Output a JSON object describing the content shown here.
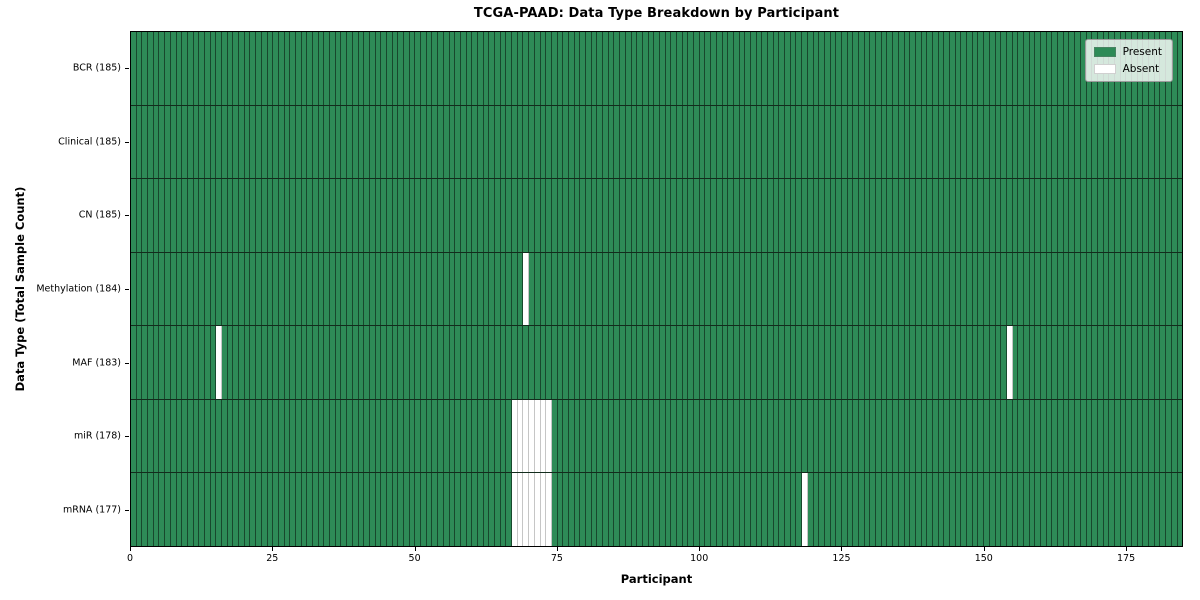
{
  "chart_data": {
    "type": "heatmap",
    "title": "TCGA-PAAD: Data Type Breakdown by Participant",
    "xlabel": "Participant",
    "ylabel": "Data Type (Total Sample Count)",
    "x_range": [
      0,
      185
    ],
    "x_ticks": [
      0,
      25,
      50,
      75,
      100,
      125,
      150,
      175
    ],
    "n_participants": 185,
    "grid": "cell-borders",
    "legend_position": "upper-right",
    "colors": {
      "present": "#2e8b57",
      "absent": "#ffffff"
    },
    "legend": [
      {
        "label": "Present",
        "color": "#2e8b57"
      },
      {
        "label": "Absent",
        "color": "#ffffff"
      }
    ],
    "rows": [
      {
        "name": "BCR",
        "label": "BCR (185)",
        "present_count": 185,
        "absent_participants": []
      },
      {
        "name": "Clinical",
        "label": "Clinical (185)",
        "present_count": 185,
        "absent_participants": []
      },
      {
        "name": "CN",
        "label": "CN (185)",
        "present_count": 185,
        "absent_participants": []
      },
      {
        "name": "Methylation",
        "label": "Methylation (184)",
        "present_count": 184,
        "absent_participants": [
          69
        ]
      },
      {
        "name": "MAF",
        "label": "MAF (183)",
        "present_count": 183,
        "absent_participants": [
          15,
          154
        ]
      },
      {
        "name": "miR",
        "label": "miR (178)",
        "present_count": 178,
        "absent_participants": [
          67,
          68,
          69,
          70,
          71,
          72,
          73
        ]
      },
      {
        "name": "mRNA",
        "label": "mRNA (177)",
        "present_count": 177,
        "absent_participants": [
          67,
          68,
          69,
          70,
          71,
          72,
          73,
          118
        ]
      }
    ]
  }
}
